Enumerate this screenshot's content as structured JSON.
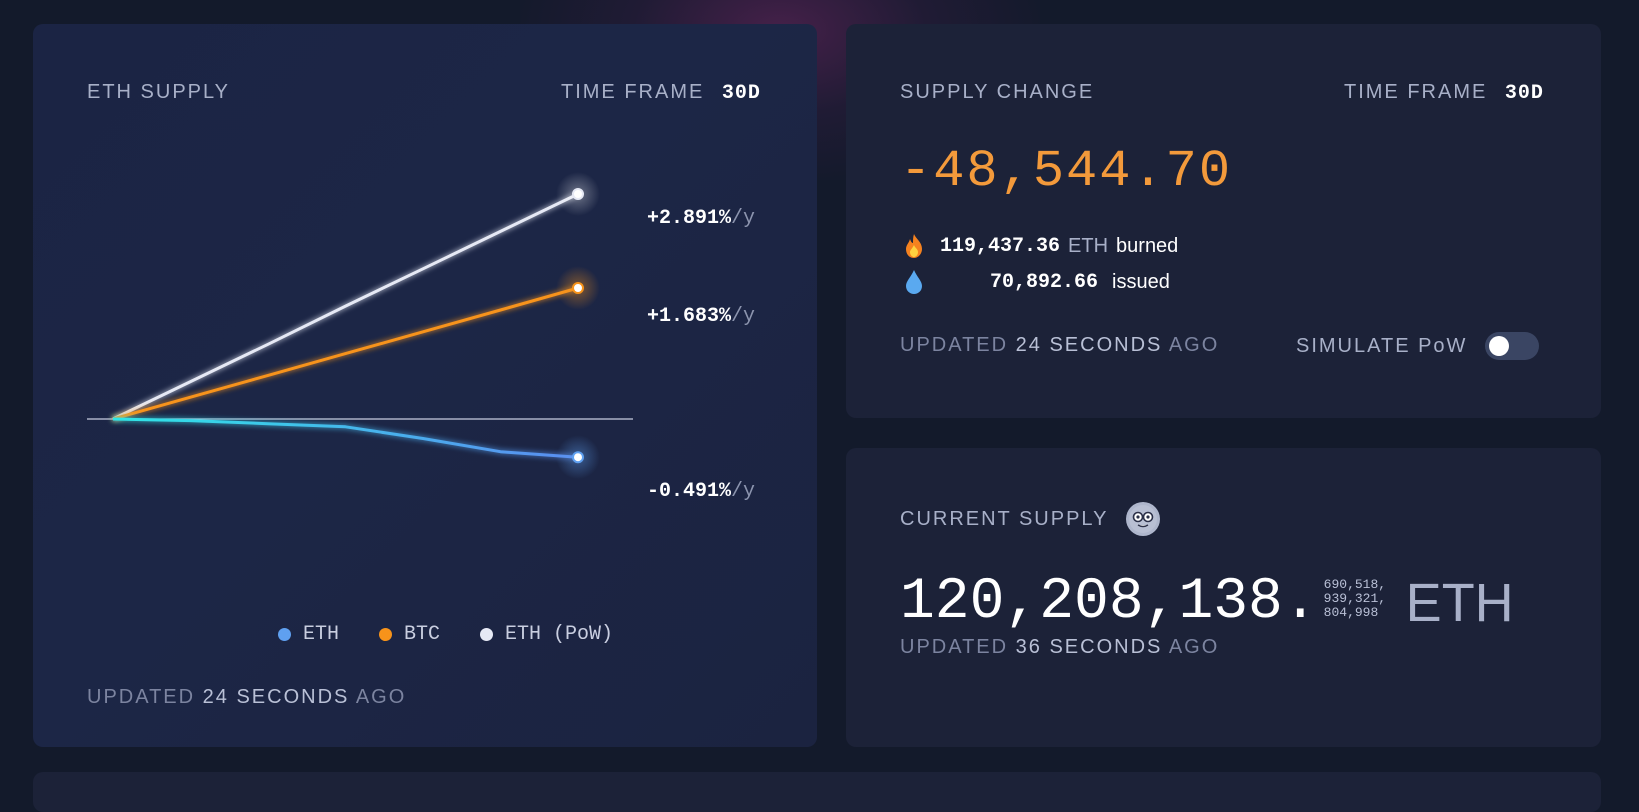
{
  "eth_supply": {
    "title": "ETH SUPPLY",
    "time_frame_label": "TIME FRAME",
    "time_frame_value": "30d",
    "updated_prefix": "UPDATED",
    "updated_value": "24 SECONDS",
    "updated_suffix": "AGO",
    "unit_suffix": "/y",
    "series_labels": {
      "pow": "+2.891%",
      "btc": "+1.683%",
      "eth": "-0.491%"
    },
    "legend": [
      {
        "label": "ETH",
        "color": "#5fa0f0"
      },
      {
        "label": "BTC",
        "color": "#f7931a"
      },
      {
        "label": "ETH (PoW)",
        "color": "#e6e9f5"
      }
    ]
  },
  "chart_data": {
    "type": "line",
    "title": "ETH SUPPLY",
    "xlabel": "",
    "ylabel": "",
    "x": [
      0,
      5,
      10,
      15,
      20,
      25,
      30
    ],
    "series": [
      {
        "name": "ETH (PoW)",
        "color": "#e6e9f5",
        "values": [
          0,
          0.48,
          0.96,
          1.45,
          1.93,
          2.41,
          2.891
        ],
        "end_label": "+2.891%/y"
      },
      {
        "name": "BTC",
        "color": "#f7931a",
        "values": [
          0,
          0.28,
          0.56,
          0.84,
          1.12,
          1.4,
          1.683
        ],
        "end_label": "+1.683%/y"
      },
      {
        "name": "ETH",
        "color": "#5fa0f0",
        "values": [
          0,
          -0.02,
          -0.06,
          -0.1,
          -0.25,
          -0.42,
          -0.491
        ],
        "end_label": "-0.491%/y"
      }
    ],
    "baseline": 0,
    "grid": false,
    "legend_position": "bottom-center"
  },
  "supply_change": {
    "title": "SUPPLY CHANGE",
    "time_frame_label": "TIME FRAME",
    "time_frame_value": "30d",
    "value": "-48,544.70",
    "burned_icon": "fire-icon",
    "burned_amount": "119,437.36",
    "burned_unit": "ETH",
    "burned_word": "burned",
    "issued_icon": "droplet-icon",
    "issued_amount": "70,892.66",
    "issued_word": "issued",
    "updated_prefix": "UPDATED",
    "updated_value": "24 SECONDS",
    "updated_suffix": "AGO",
    "simulate_label": "SIMULATE PoW",
    "simulate_on": false
  },
  "current_supply": {
    "title": "CURRENT SUPPLY",
    "icon": "nerd-face-icon",
    "integer_part": "120,208,138.",
    "fraction_lines": [
      "690,518,",
      "939,321,",
      "804,998"
    ],
    "unit": "ETH",
    "updated_prefix": "UPDATED",
    "updated_value": "36 SECONDS",
    "updated_suffix": "AGO"
  }
}
